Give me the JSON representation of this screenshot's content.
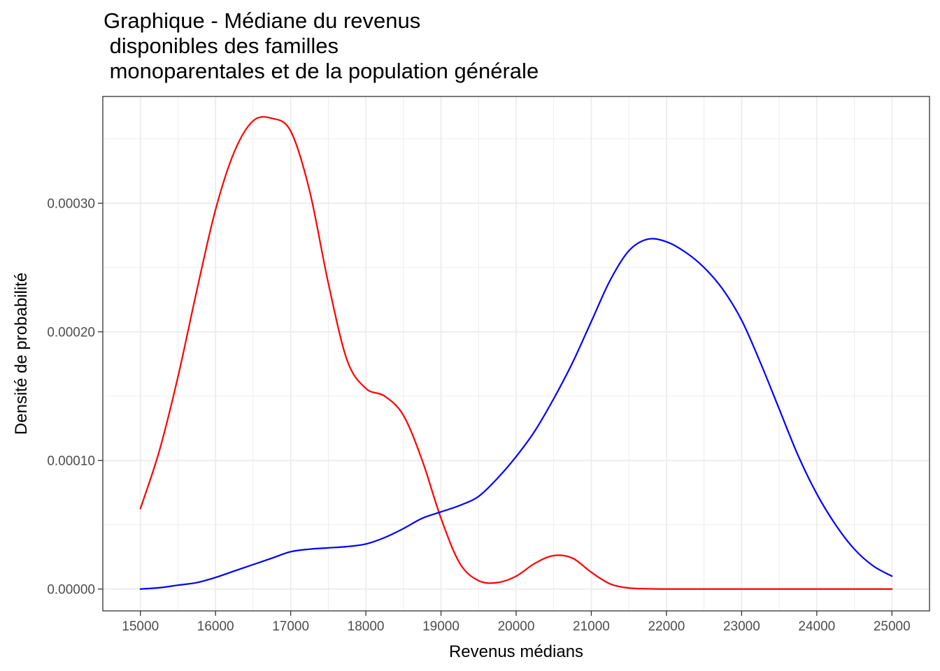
{
  "chart_data": {
    "type": "line",
    "title": "Graphique - Médiane du revenus\n disponibles des familles\n monoparentales et de la population générale",
    "xlabel": "Revenus médians",
    "ylabel": "Densité de probabilité",
    "xlim": [
      14500,
      25500
    ],
    "ylim": [
      -1.7e-05,
      0.000383
    ],
    "x_ticks": [
      15000,
      16000,
      17000,
      18000,
      19000,
      20000,
      21000,
      22000,
      23000,
      24000,
      25000
    ],
    "x_tick_labels": [
      "15000",
      "16000",
      "17000",
      "18000",
      "19000",
      "20000",
      "21000",
      "22000",
      "23000",
      "24000",
      "25000"
    ],
    "y_ticks": [
      0,
      0.0001,
      0.0002,
      0.0003
    ],
    "y_tick_labels": [
      "0.00000",
      "0.00010",
      "0.00020",
      "0.00030"
    ],
    "grid": true,
    "legend": "none",
    "series": [
      {
        "color": "#ff0000",
        "x": [
          15000,
          15250,
          15500,
          15750,
          16000,
          16250,
          16500,
          16750,
          17000,
          17250,
          17500,
          17750,
          18000,
          18250,
          18500,
          18750,
          19000,
          19250,
          19500,
          19750,
          20000,
          20250,
          20500,
          20750,
          21000,
          21250,
          21500,
          21750,
          22000,
          22500,
          23000,
          23500,
          24000,
          24500,
          25000
        ],
        "y": [
          6.25e-05,
          0.000107,
          0.000165,
          0.000232,
          0.000295,
          0.00034,
          0.000364,
          0.000366,
          0.000356,
          0.00031,
          0.000238,
          0.000178,
          0.000156,
          0.00015,
          0.000135,
          0.0001,
          5.5e-05,
          2e-05,
          6.5e-06,
          5e-06,
          1e-05,
          2e-05,
          2.6e-05,
          2.4e-05,
          1.3e-05,
          4e-06,
          8e-07,
          2e-07,
          0,
          0,
          0,
          0,
          0,
          0,
          0
        ]
      },
      {
        "color": "#0000ff",
        "x": [
          15000,
          15250,
          15500,
          15750,
          16000,
          16250,
          16500,
          16750,
          17000,
          17250,
          17500,
          17750,
          18000,
          18250,
          18500,
          18750,
          19000,
          19250,
          19500,
          19750,
          20000,
          20250,
          20500,
          20750,
          21000,
          21250,
          21500,
          21750,
          22000,
          22250,
          22500,
          22750,
          23000,
          23250,
          23500,
          23750,
          24000,
          24250,
          24500,
          24750,
          25000
        ],
        "y": [
          0,
          1e-06,
          3e-06,
          5e-06,
          9e-06,
          1.4e-05,
          1.9e-05,
          2.4e-05,
          2.9e-05,
          3.1e-05,
          3.2e-05,
          3.3e-05,
          3.5e-05,
          4e-05,
          4.7e-05,
          5.5e-05,
          6e-05,
          6.5e-05,
          7.2e-05,
          8.6e-05,
          0.000103,
          0.000123,
          0.000148,
          0.000176,
          0.000208,
          0.00024,
          0.000263,
          0.000272,
          0.00027,
          0.000262,
          0.00025,
          0.000233,
          0.000209,
          0.000176,
          0.00014,
          0.000104,
          7.4e-05,
          5e-05,
          3.1e-05,
          1.8e-05,
          1e-05
        ]
      }
    ]
  }
}
